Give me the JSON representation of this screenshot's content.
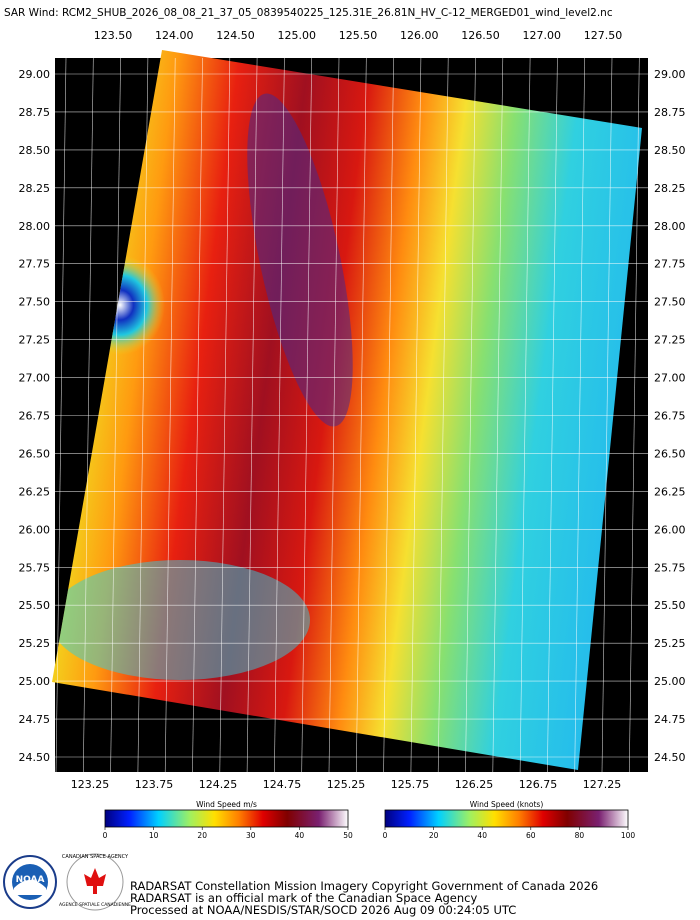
{
  "header": {
    "title": "SAR Wind: RCM2_SHUB_2026_08_08_21_37_05_0839540225_125.31E_26.81N_HV_C-12_MERGED01_wind_level2.nc"
  },
  "map": {
    "top_lon_labels": [
      "123.50",
      "124.00",
      "124.50",
      "125.00",
      "125.50",
      "126.00",
      "126.50",
      "127.00",
      "127.50"
    ],
    "bottom_lon_labels": [
      "123.25",
      "123.75",
      "124.25",
      "124.75",
      "125.25",
      "125.75",
      "126.25",
      "126.75",
      "127.25"
    ],
    "lat_labels": [
      "29.00",
      "28.75",
      "28.50",
      "28.25",
      "28.00",
      "27.75",
      "27.50",
      "27.25",
      "27.00",
      "26.75",
      "26.50",
      "26.25",
      "26.00",
      "25.75",
      "25.50",
      "25.25",
      "25.00",
      "24.75",
      "24.50"
    ]
  },
  "colorbars": [
    {
      "title": "Wind Speed m/s",
      "ticks": [
        0,
        10,
        20,
        30,
        40,
        50
      ]
    },
    {
      "title": "Wind Speed (knots)",
      "ticks": [
        0,
        20,
        40,
        60,
        80,
        100
      ]
    }
  ],
  "logos": {
    "noaa": "NOAA",
    "csa": "CANADIAN SPACE AGENCY",
    "asc": "AGENCE SPATIALE CANADIENNE"
  },
  "footer": {
    "lines": [
      "RADARSAT Constellation Mission Imagery Copyright Government of Canada 2026",
      "RADARSAT is an official mark of the Canadian Space Agency",
      "Processed at NOAA/NESDIS/STAR/SOCD 2026 Aug 09 00:24:05 UTC"
    ]
  }
}
